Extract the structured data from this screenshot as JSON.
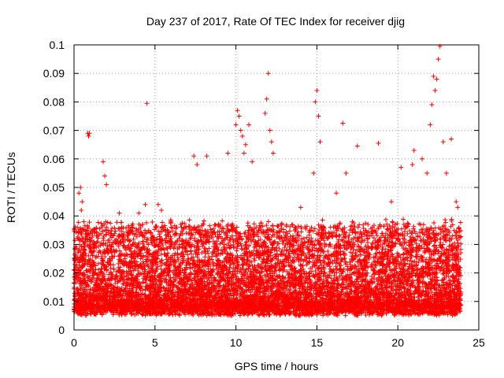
{
  "chart_data": {
    "type": "scatter",
    "title": "Day 237 of 2017, Rate Of TEC Index for receiver djig",
    "xlabel": "GPS time / hours",
    "ylabel": "ROTI / TECUs",
    "xlim": [
      0,
      25
    ],
    "ylim": [
      0,
      0.1
    ],
    "x_ticks": [
      0,
      5,
      10,
      15,
      20,
      25
    ],
    "y_ticks": [
      0,
      0.01,
      0.02,
      0.03,
      0.04,
      0.05,
      0.06,
      0.07,
      0.08,
      0.09,
      0.1
    ],
    "x_tick_labels": [
      "0",
      "5",
      "10",
      "15",
      "20",
      "25"
    ],
    "y_tick_labels": [
      "0",
      "0.01",
      "0.02",
      "0.03",
      "0.04",
      "0.05",
      "0.06",
      "0.07",
      "0.08",
      "0.09",
      "0.1"
    ],
    "grid": true,
    "marker": "plus",
    "color": "#ff0000",
    "x_range_of_points": [
      0,
      23.9
    ],
    "series": [
      {
        "values_x": [
          0.2,
          0.3,
          0.4,
          0.45,
          0.5,
          0.6,
          0.85,
          0.9,
          0.95,
          1.8,
          1.9,
          2.0,
          2.8,
          3.6,
          4.0,
          4.4,
          4.5,
          5.2,
          5.4,
          6.0,
          7.4,
          7.6,
          8.2,
          9.5,
          10.0,
          10.1,
          10.2,
          10.3,
          10.4,
          10.5,
          10.6,
          10.8,
          11.0,
          11.8,
          11.9,
          12.0,
          12.1,
          12.2,
          12.3,
          14.0,
          14.8,
          14.9,
          15.0,
          15.1,
          15.2,
          16.2,
          16.6,
          16.8,
          17.5,
          18.8,
          19.6,
          20.2,
          20.9,
          21.0,
          21.5,
          21.8,
          22.0,
          22.1,
          22.2,
          22.3,
          22.4,
          22.5,
          22.6,
          22.8,
          23.0,
          23.3,
          23.6,
          23.7
        ],
        "values_y": [
          0.036,
          0.048,
          0.05,
          0.042,
          0.045,
          0.038,
          0.069,
          0.068,
          0.069,
          0.059,
          0.054,
          0.051,
          0.041,
          0.036,
          0.041,
          0.044,
          0.0795,
          0.044,
          0.042,
          0.036,
          0.061,
          0.058,
          0.061,
          0.062,
          0.072,
          0.077,
          0.075,
          0.07,
          0.068,
          0.062,
          0.065,
          0.072,
          0.059,
          0.076,
          0.081,
          0.09,
          0.07,
          0.066,
          0.062,
          0.043,
          0.055,
          0.08,
          0.084,
          0.075,
          0.066,
          0.048,
          0.0725,
          0.055,
          0.0645,
          0.0655,
          0.045,
          0.057,
          0.058,
          0.063,
          0.06,
          0.055,
          0.072,
          0.079,
          0.089,
          0.084,
          0.088,
          0.095,
          0.0995,
          0.066,
          0.055,
          0.067,
          0.045,
          0.043
        ]
      }
    ]
  }
}
